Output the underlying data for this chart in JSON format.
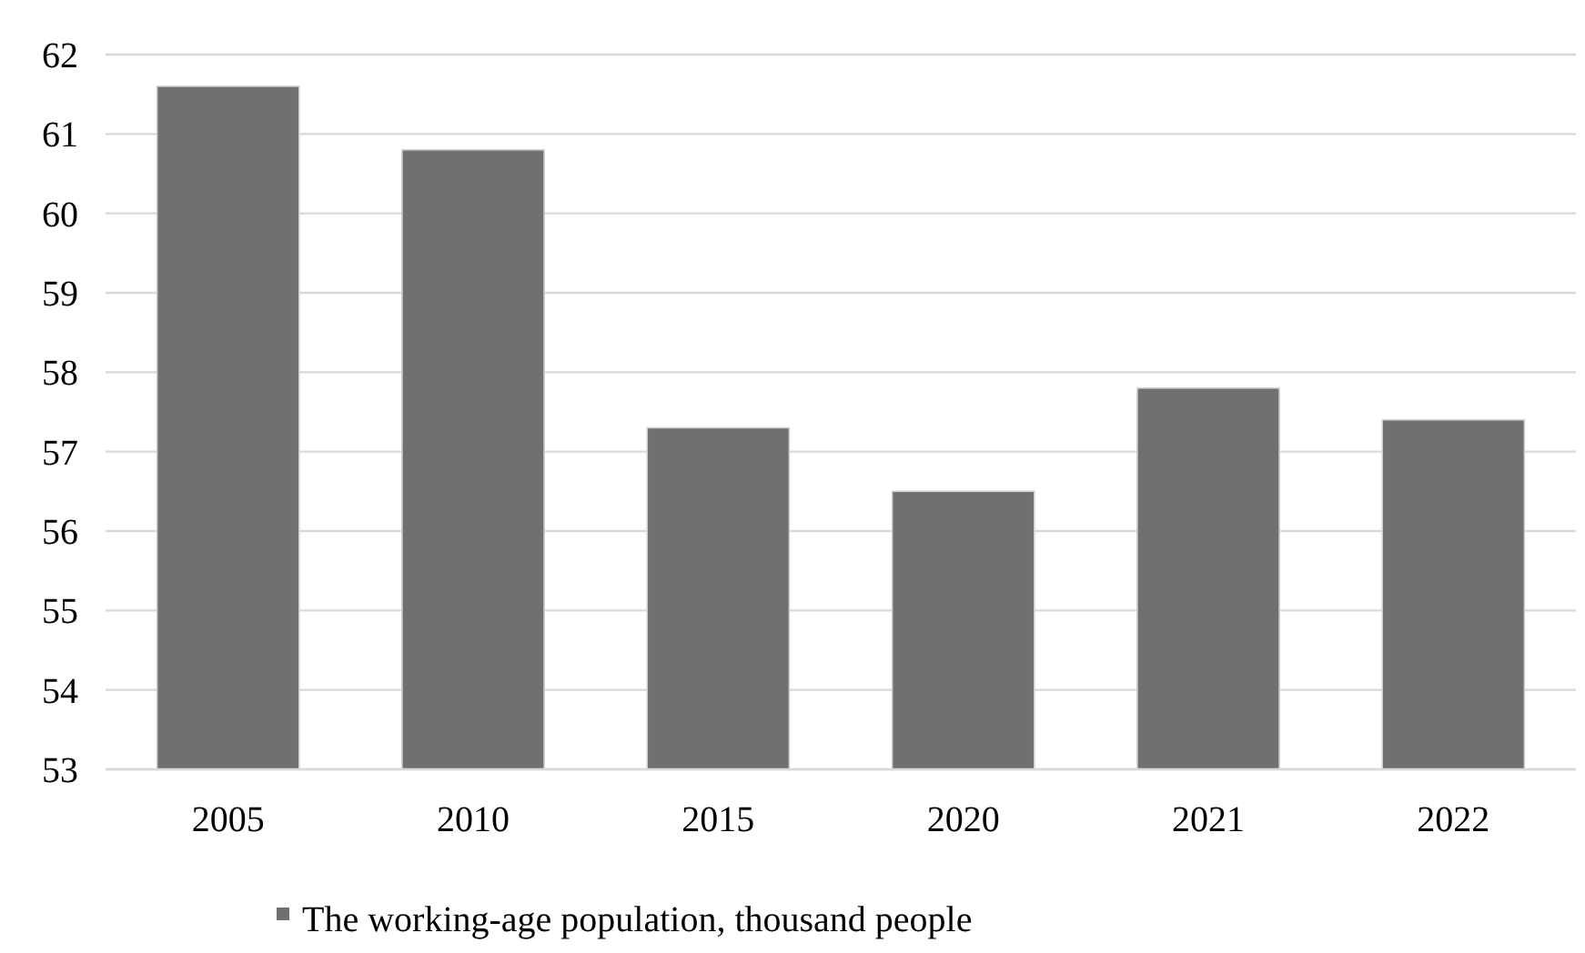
{
  "chart_data": {
    "type": "bar",
    "categories": [
      "2005",
      "2010",
      "2015",
      "2020",
      "2021",
      "2022"
    ],
    "series": [
      {
        "name": "The working-age population, thousand people",
        "color": "#707070",
        "values": [
          61.6,
          60.8,
          57.3,
          56.5,
          57.8,
          57.4
        ]
      }
    ],
    "ylim": [
      53,
      62
    ],
    "yticks": [
      53,
      54,
      55,
      56,
      57,
      58,
      59,
      60,
      61,
      62
    ],
    "grid": "y",
    "legend": "bottom"
  }
}
